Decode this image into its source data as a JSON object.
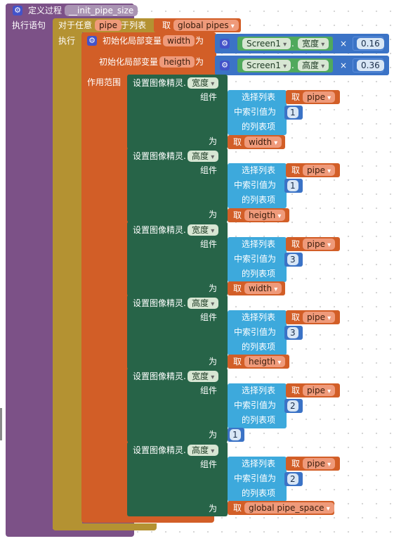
{
  "procedure": {
    "define_label": "定义过程",
    "name": "__init_pipe_size",
    "statements_label": "执行语句"
  },
  "foreach": {
    "for_each_label": "对于任意",
    "var": "pipe",
    "in_list_label": "于列表",
    "get_label": "取",
    "list_var": "global pipes",
    "do_label": "执行"
  },
  "local_vars": {
    "init_label": "初始化局部变量",
    "as_label": "为",
    "scope_label": "作用范围",
    "vars": [
      {
        "name": "width",
        "component": "Screen1",
        "property": "宽度",
        "times": "×",
        "factor": "0.16"
      },
      {
        "name": "heigth",
        "component": "Screen1",
        "property": "高度",
        "times": "×",
        "factor": "0.36"
      }
    ]
  },
  "setters": {
    "set_label": "设置图像精灵.",
    "component_label": "组件",
    "to_label": "为",
    "select_label": "选择列表",
    "index_label": "中索引值为",
    "list_item_label": "的列表项",
    "get_label": "取",
    "items": [
      {
        "property": "宽度",
        "list_var": "pipe",
        "index": "1",
        "value_type": "get",
        "value": "width"
      },
      {
        "property": "高度",
        "list_var": "pipe",
        "index": "1",
        "value_type": "get",
        "value": "heigth"
      },
      {
        "property": "宽度",
        "list_var": "pipe",
        "index": "3",
        "value_type": "get",
        "value": "width"
      },
      {
        "property": "高度",
        "list_var": "pipe",
        "index": "3",
        "value_type": "get",
        "value": "heigth"
      },
      {
        "property": "宽度",
        "list_var": "pipe",
        "index": "2",
        "value_type": "number",
        "value": "1"
      },
      {
        "property": "高度",
        "list_var": "pipe",
        "index": "2",
        "value_type": "get",
        "value": "global pipe_space"
      }
    ]
  }
}
